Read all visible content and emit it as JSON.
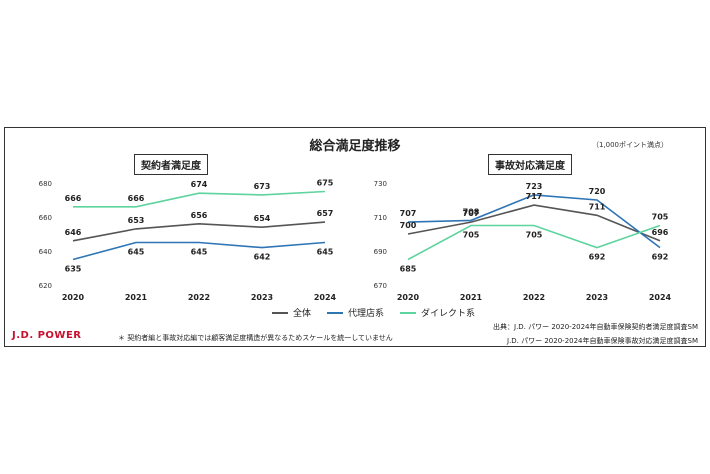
{
  "page": {
    "title": "総合満足度推移",
    "unit_note": "（1,000ポイント満点）",
    "footnote": "＊ 契約者編と事故対応編では顧客満足度構造が異なるためスケールを統一していません",
    "source_1": "出典：J.D. パワー 2020-2024年自動車保険契約者満足度調査SM",
    "source_2": "J.D. パワー 2020-2024年自動車保険事故対応満足度調査SM",
    "brand": "J.D. POWER",
    "legend": [
      {
        "label": "全体",
        "color": "#555555"
      },
      {
        "label": "代理店系",
        "color": "#2e75b6"
      },
      {
        "label": "ダイレクト系",
        "color": "#5dd39e"
      }
    ]
  },
  "chart_data": [
    {
      "type": "line",
      "title": "契約者満足度",
      "categories": [
        "2020",
        "2021",
        "2022",
        "2023",
        "2024"
      ],
      "ylim": [
        620,
        680
      ],
      "yticks": [
        620,
        640,
        660,
        680
      ],
      "series": [
        {
          "name": "全体",
          "color": "#555555",
          "values": [
            646,
            653,
            656,
            654,
            657
          ]
        },
        {
          "name": "代理店系",
          "color": "#2e75b6",
          "values": [
            635,
            645,
            645,
            642,
            645
          ]
        },
        {
          "name": "ダイレクト系",
          "color": "#5dd39e",
          "values": [
            666,
            666,
            674,
            673,
            675
          ]
        }
      ]
    },
    {
      "type": "line",
      "title": "事故対応満足度",
      "categories": [
        "2020",
        "2021",
        "2022",
        "2023",
        "2024"
      ],
      "ylim": [
        670,
        730
      ],
      "yticks": [
        670,
        690,
        710,
        730
      ],
      "series": [
        {
          "name": "全体",
          "color": "#555555",
          "values": [
            700,
            707,
            717,
            711,
            696
          ]
        },
        {
          "name": "代理店系",
          "color": "#2e75b6",
          "values": [
            707,
            708,
            723,
            720,
            692
          ]
        },
        {
          "name": "ダイレクト系",
          "color": "#5dd39e",
          "values": [
            685,
            705,
            705,
            692,
            705
          ]
        }
      ]
    }
  ]
}
